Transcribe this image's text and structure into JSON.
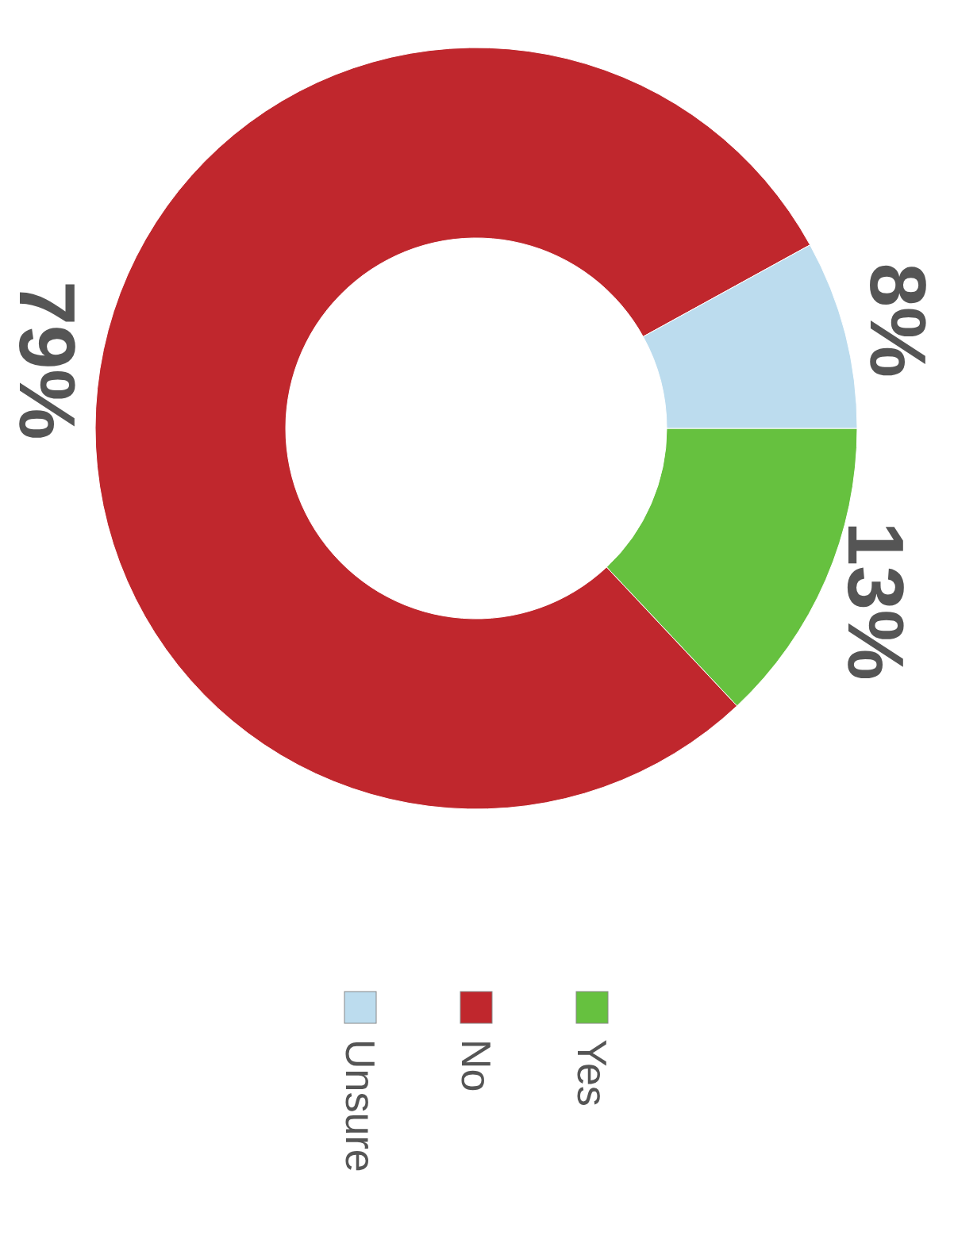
{
  "chart_data": {
    "type": "donut",
    "categories": [
      "Yes",
      "No",
      "Unsure"
    ],
    "values": [
      13,
      79,
      8
    ],
    "colors": [
      "#66c13f",
      "#c0272d",
      "#bcdcee"
    ],
    "value_labels": [
      "13%",
      "79%",
      "8%"
    ],
    "legend": "bottom"
  }
}
